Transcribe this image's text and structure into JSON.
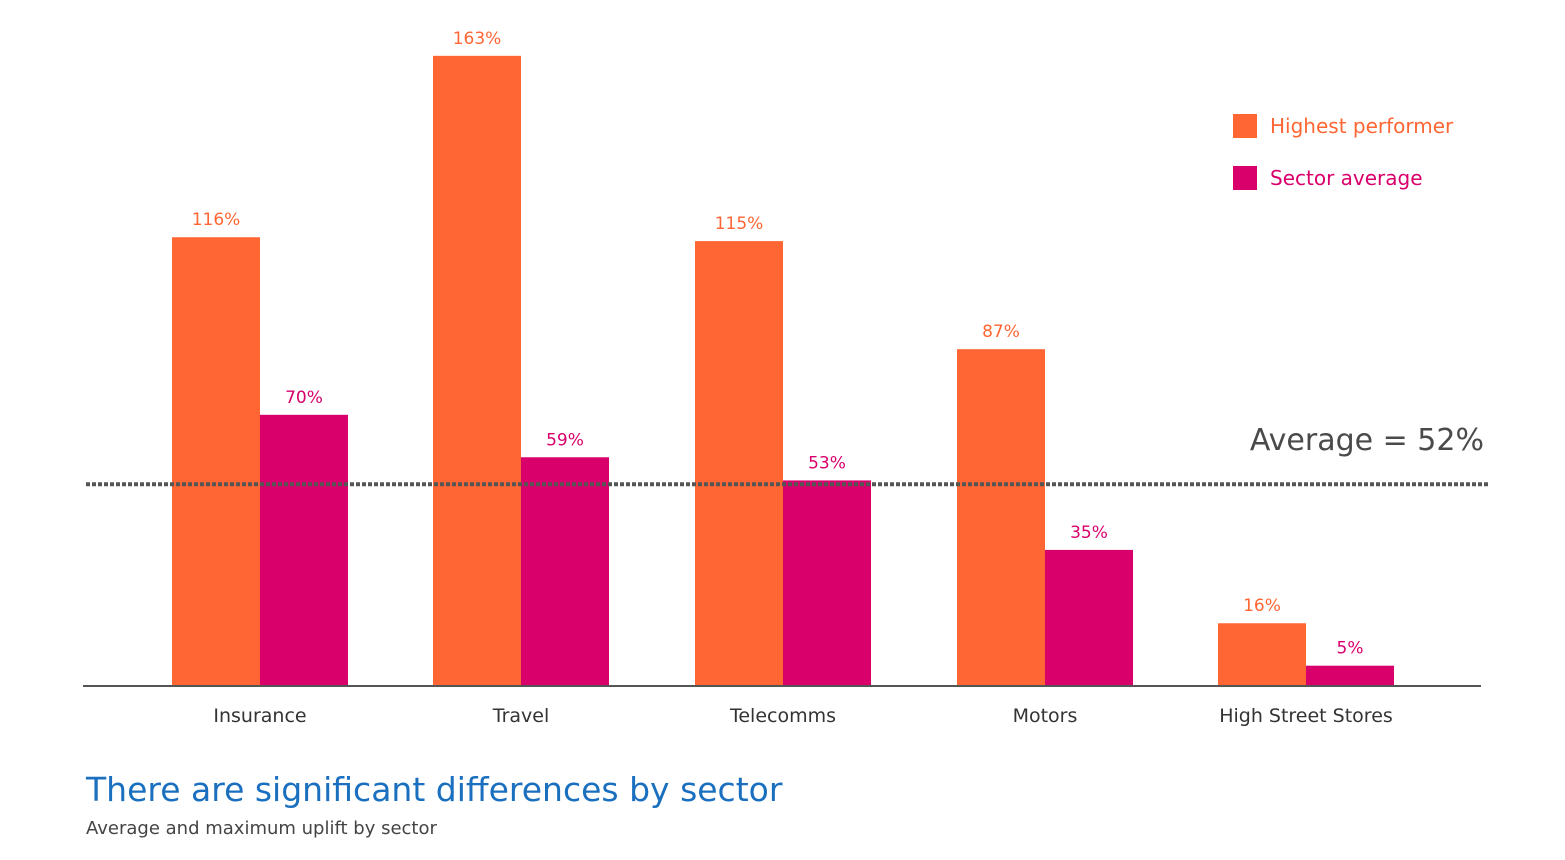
{
  "chart_data": {
    "type": "bar",
    "categories": [
      "Insurance",
      "Travel",
      "Telecomms",
      "Motors",
      "High Street Stores"
    ],
    "series": [
      {
        "name": "Highest performer",
        "values": [
          116,
          163,
          115,
          87,
          16
        ],
        "labels": [
          "116%",
          "163%",
          "115%",
          "87%",
          "16%"
        ],
        "color": "#ff6633"
      },
      {
        "name": "Sector average",
        "values": [
          70,
          59,
          53,
          35,
          5
        ],
        "labels": [
          "70%",
          "59%",
          "53%",
          "35%",
          "5%"
        ],
        "color": "#d9006c"
      }
    ],
    "reference_line": {
      "value": 52,
      "label": "Average = 52%",
      "style": "dotted",
      "color": "#555555"
    },
    "ylim": [
      0,
      170
    ],
    "legend_position": "top-right",
    "grid": false,
    "title": "There are significant differences by sector",
    "subtitle": "Average and maximum uplift by sector"
  }
}
